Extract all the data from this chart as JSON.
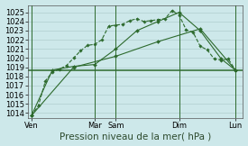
{
  "background_color": "#cde8ea",
  "grid_color": "#b0cece",
  "line_color": "#2d6a2d",
  "ylim": [
    1013.5,
    1025.8
  ],
  "yticks": [
    1014,
    1015,
    1016,
    1017,
    1018,
    1019,
    1020,
    1021,
    1022,
    1023,
    1024,
    1025
  ],
  "xlabel": "Pression niveau de la mer( hPa )",
  "xlabel_fontsize": 7.5,
  "tick_fontsize": 6.0,
  "day_labels": [
    "Ven",
    "Mar",
    "Sam",
    "Dim",
    "Lun"
  ],
  "day_positions": [
    0,
    9,
    12,
    21,
    29
  ],
  "vline_positions": [
    0,
    9,
    12,
    21,
    29
  ],
  "hline_y": 1018.7,
  "series1_x": [
    0,
    1,
    2,
    3,
    4,
    5,
    6,
    7,
    8,
    9,
    10,
    11,
    12,
    13,
    14,
    15,
    16,
    17,
    18,
    19,
    20,
    21,
    22,
    23,
    24,
    25,
    26,
    27,
    28,
    29
  ],
  "series1_y": [
    1013.7,
    1014.8,
    1017.5,
    1018.5,
    1018.8,
    1019.2,
    1020.0,
    1020.8,
    1021.4,
    1021.5,
    1022.0,
    1023.5,
    1023.6,
    1023.7,
    1024.1,
    1024.3,
    1024.0,
    1024.1,
    1024.2,
    1024.3,
    1025.2,
    1024.7,
    1023.1,
    1022.8,
    1021.3,
    1020.9,
    1019.9,
    1019.8,
    1019.9,
    1018.7
  ],
  "series2_x": [
    0,
    3,
    6,
    9,
    12,
    15,
    18,
    21,
    24,
    27,
    29
  ],
  "series2_y": [
    1013.7,
    1018.7,
    1019.1,
    1019.3,
    1021.0,
    1023.0,
    1024.0,
    1025.0,
    1023.0,
    1019.9,
    1018.7
  ],
  "series3_x": [
    0,
    6,
    12,
    18,
    24,
    29
  ],
  "series3_y": [
    1013.7,
    1019.0,
    1020.2,
    1021.8,
    1023.2,
    1018.7
  ]
}
